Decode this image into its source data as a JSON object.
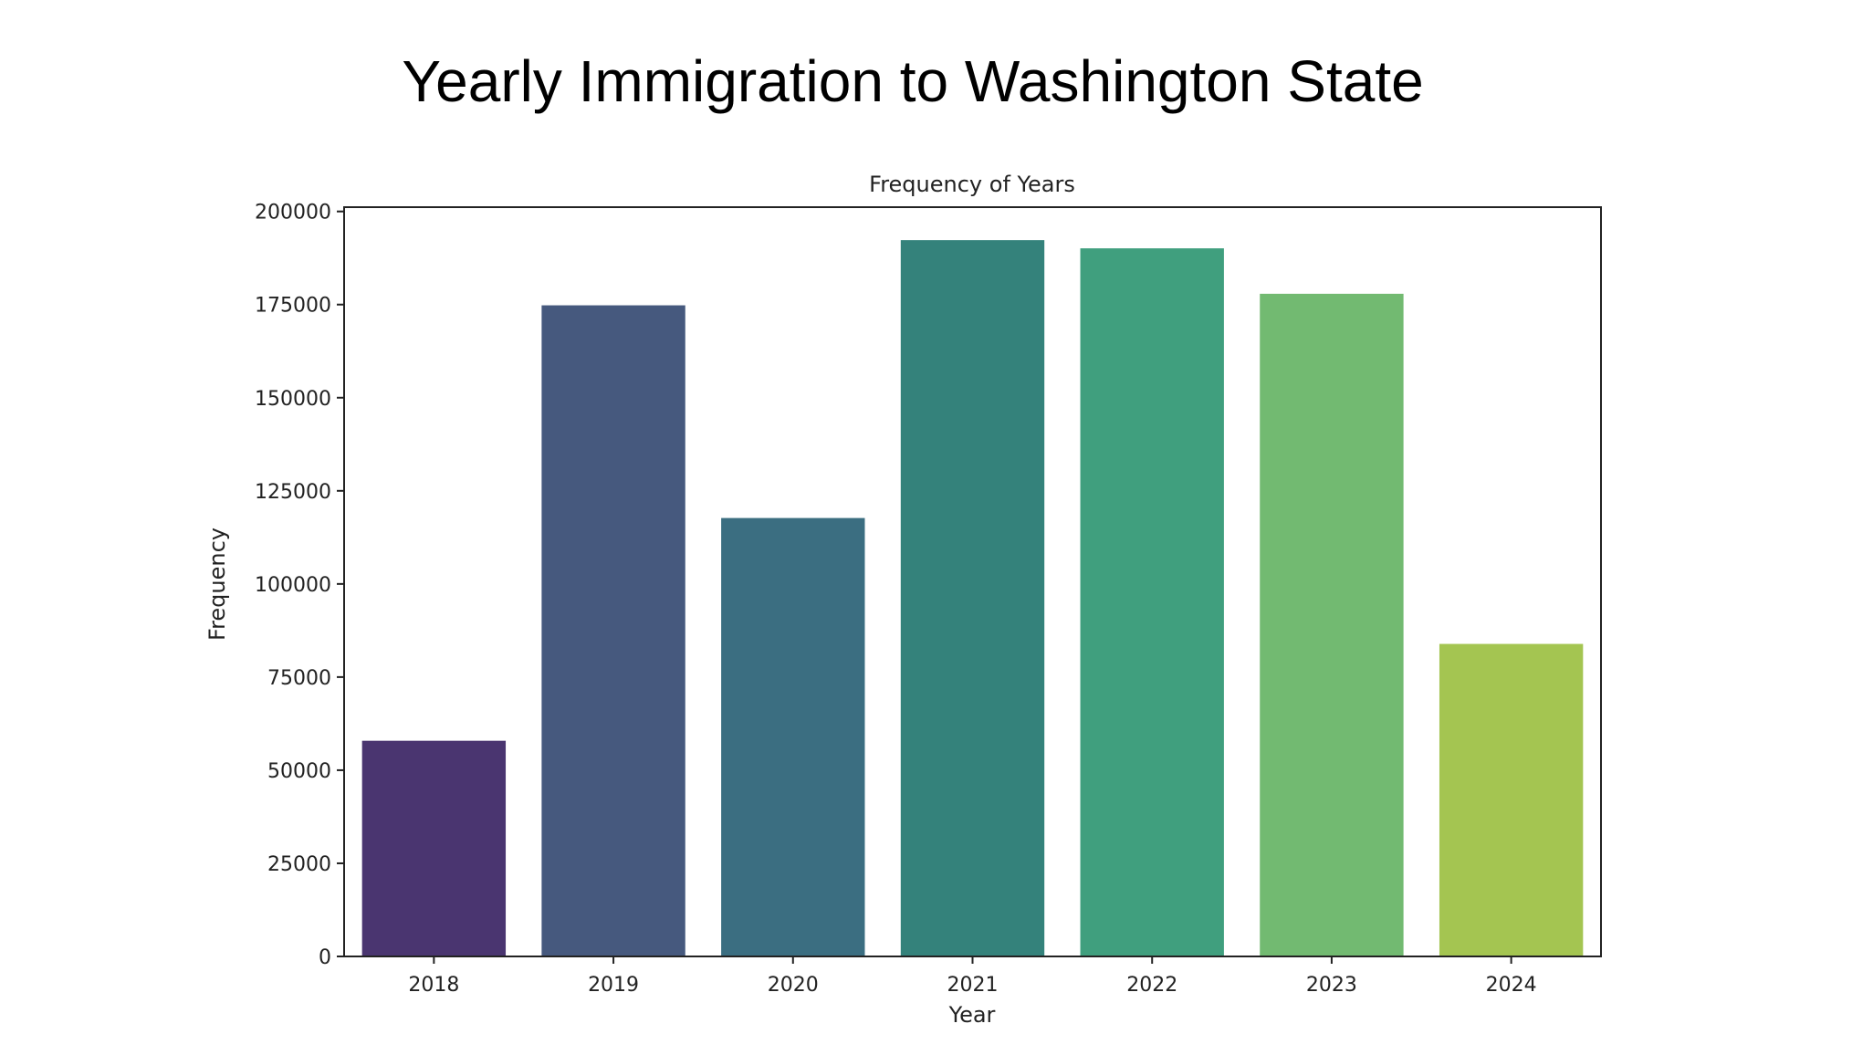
{
  "slide": {
    "title": "Yearly Immigration to Washington State"
  },
  "chart_data": {
    "type": "bar",
    "title": "Frequency of Years",
    "xlabel": "Year",
    "ylabel": "Frequency",
    "categories": [
      "2018",
      "2019",
      "2020",
      "2021",
      "2022",
      "2023",
      "2024"
    ],
    "values": [
      57900,
      174800,
      117700,
      192300,
      190100,
      177900,
      83900
    ],
    "colors": [
      "#4a3570",
      "#46597e",
      "#3b6e81",
      "#34827b",
      "#409f7e",
      "#72ba71",
      "#a4c551"
    ],
    "ylim": [
      0,
      202000
    ],
    "yticks": [
      0,
      25000,
      50000,
      75000,
      100000,
      125000,
      150000,
      175000,
      200000
    ],
    "ytick_labels": [
      "0",
      "25000",
      "50000",
      "75000",
      "100000",
      "125000",
      "150000",
      "175000",
      "200000"
    ],
    "grid": false,
    "legend": "none"
  }
}
